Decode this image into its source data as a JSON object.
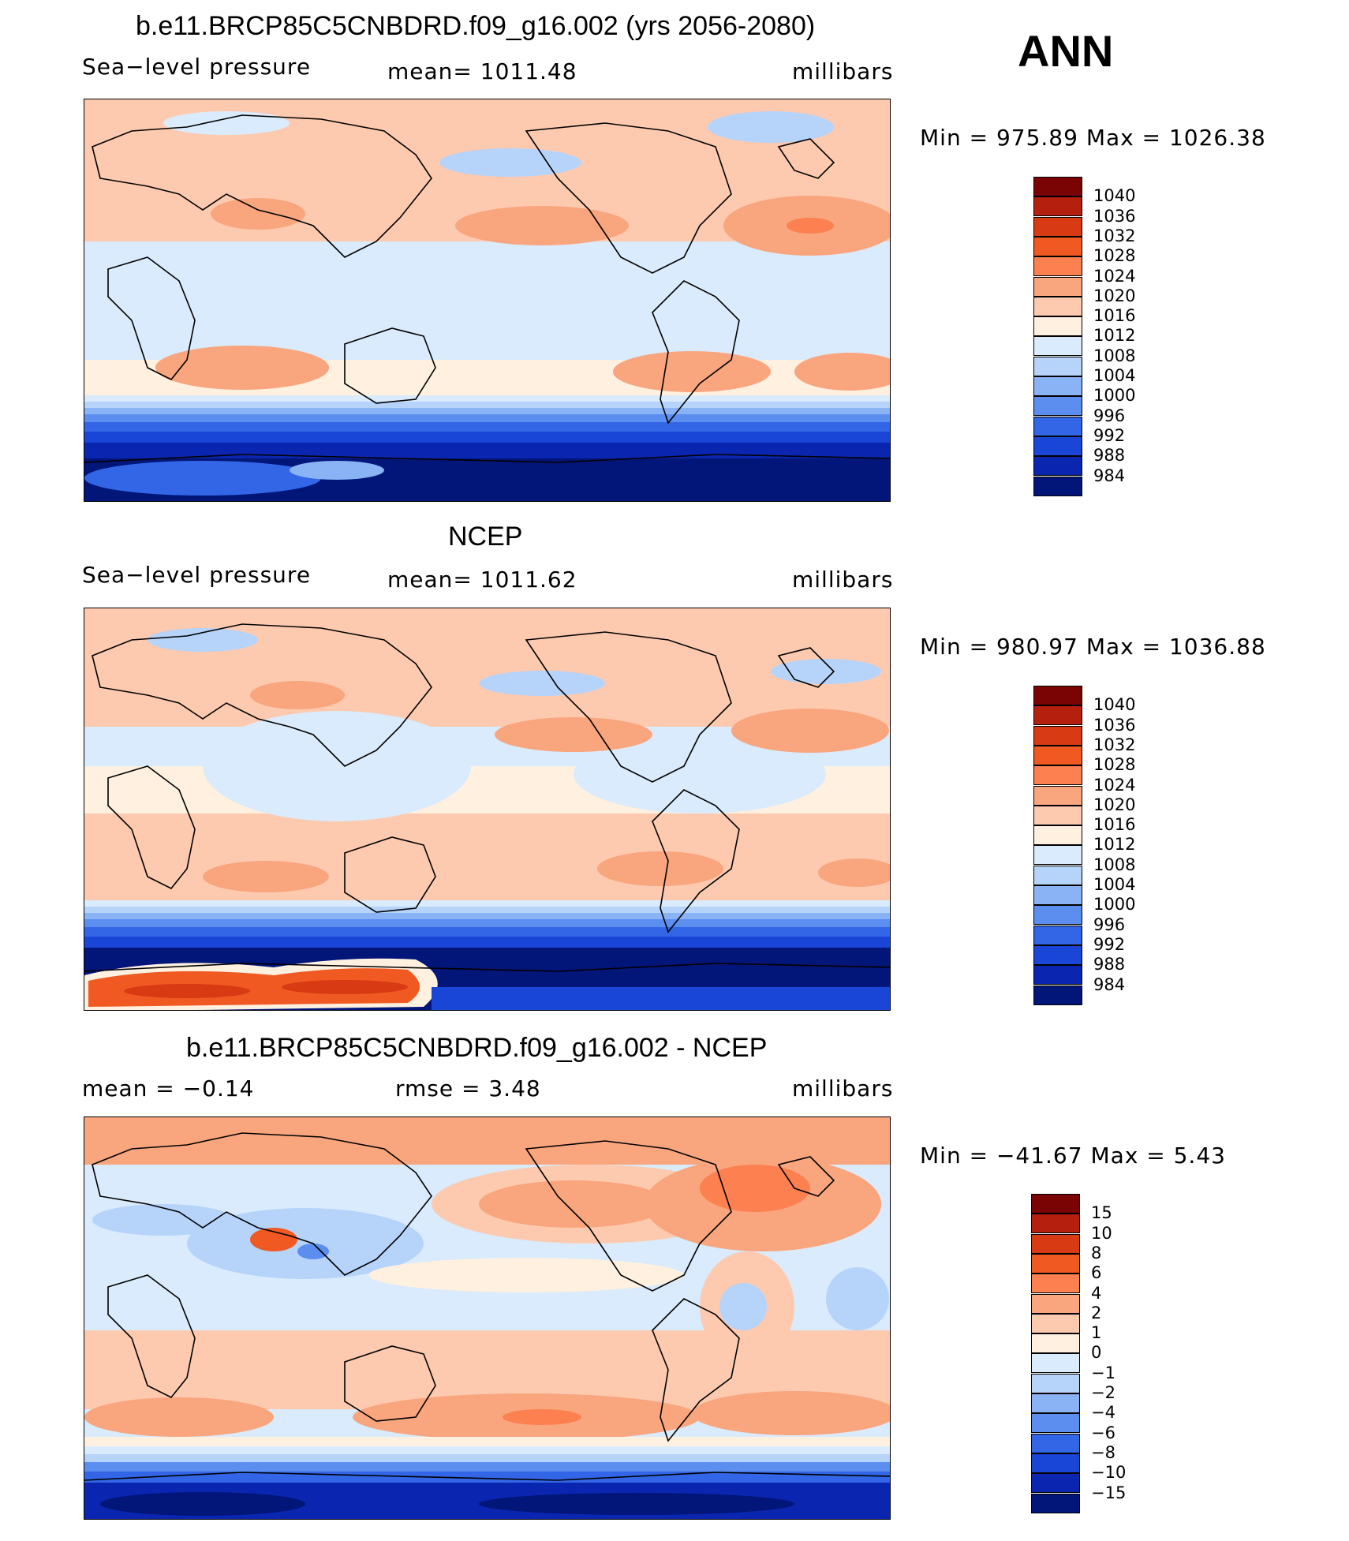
{
  "season": "ANN",
  "panels": [
    {
      "id": "model",
      "title": "b.e11.BRCP85C5CNBDRD.f09_g16.002 (yrs 2056-2080)",
      "left_label": "Sea−level pressure",
      "center_label": "mean=  1011.48",
      "right_label": "millibars",
      "minmax": "Min  =  975.89  Max  =  1026.38",
      "legend": {
        "labels": [
          "1040",
          "1036",
          "1032",
          "1028",
          "1024",
          "1020",
          "1016",
          "1012",
          "1008",
          "1004",
          "1000",
          "996",
          "992",
          "988",
          "984"
        ],
        "colors": [
          "#7a0403",
          "#b5200e",
          "#d83a13",
          "#f05a22",
          "#fc8050",
          "#f9a57e",
          "#fdcab0",
          "#fff0e0",
          "#d9ebfc",
          "#b6d3fa",
          "#8ab3f5",
          "#5c8ef0",
          "#3266e6",
          "#1a46d8",
          "#0a26b0",
          "#021578"
        ]
      }
    },
    {
      "id": "obs",
      "title": "NCEP",
      "left_label": "Sea−level pressure",
      "center_label": "mean=  1011.62",
      "right_label": "millibars",
      "minmax": "Min  =  980.97  Max  =  1036.88",
      "legend": {
        "labels": [
          "1040",
          "1036",
          "1032",
          "1028",
          "1024",
          "1020",
          "1016",
          "1012",
          "1008",
          "1004",
          "1000",
          "996",
          "992",
          "988",
          "984"
        ],
        "colors": [
          "#7a0403",
          "#b5200e",
          "#d83a13",
          "#f05a22",
          "#fc8050",
          "#f9a57e",
          "#fdcab0",
          "#fff0e0",
          "#d9ebfc",
          "#b6d3fa",
          "#8ab3f5",
          "#5c8ef0",
          "#3266e6",
          "#1a46d8",
          "#0a26b0",
          "#021578"
        ]
      }
    },
    {
      "id": "diff",
      "title": "b.e11.BRCP85C5CNBDRD.f09_g16.002 - NCEP",
      "left_label": "mean  =    −0.14",
      "center_label": "rmse  =     3.48",
      "right_label": "millibars",
      "minmax": "Min  =  −41.67  Max  =      5.43",
      "legend": {
        "labels": [
          "15",
          "10",
          "8",
          "6",
          "4",
          "2",
          "1",
          "0",
          "−1",
          "−2",
          "−4",
          "−6",
          "−8",
          "−10",
          "−15"
        ],
        "colors": [
          "#7a0403",
          "#b5200e",
          "#d83a13",
          "#f05a22",
          "#fc8050",
          "#f9a57e",
          "#fdcab0",
          "#fff0e0",
          "#d9ebfc",
          "#b6d3fa",
          "#8ab3f5",
          "#5c8ef0",
          "#3266e6",
          "#1a46d8",
          "#0a26b0",
          "#021578"
        ]
      }
    }
  ]
}
